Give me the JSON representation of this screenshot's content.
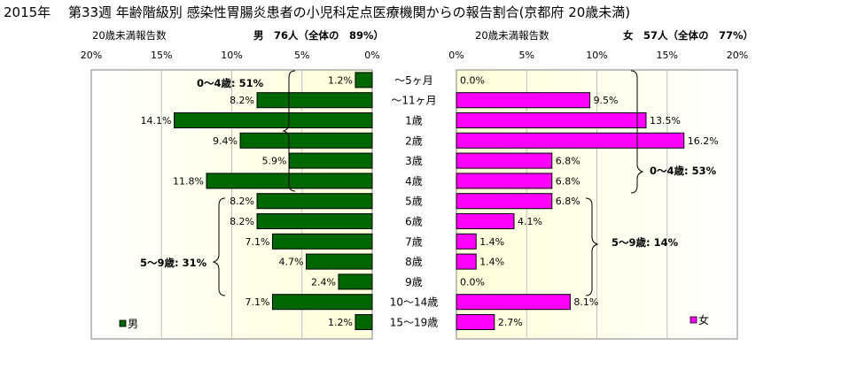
{
  "chart_data": {
    "type": "bar",
    "title": "2015年　 第33週 年齢階級別 感染性胃腸炎患者の小児科定点医療機関からの報告割合(京都府 20歳未満)",
    "categories": [
      "～5ヶ月",
      "～11ヶ月",
      "1歳",
      "2歳",
      "3歳",
      "4歳",
      "5歳",
      "6歳",
      "7歳",
      "8歳",
      "9歳",
      "10～14歳",
      "15～19歳"
    ],
    "axis_ticks": [
      "20%",
      "15%",
      "10%",
      "5%",
      "0%"
    ],
    "axis_ticks_right": [
      "0%",
      "5%",
      "10%",
      "15%",
      "20%"
    ],
    "xlim": [
      0,
      20
    ],
    "series": [
      {
        "name": "男",
        "color": "#006600",
        "values": [
          1.2,
          8.2,
          14.1,
          9.4,
          5.9,
          11.8,
          8.2,
          8.2,
          7.1,
          4.7,
          2.4,
          7.1,
          1.2
        ],
        "labels": [
          "1.2%",
          "8.2%",
          "14.1%",
          "9.4%",
          "5.9%",
          "11.8%",
          "8.2%",
          "8.2%",
          "7.1%",
          "4.7%",
          "2.4%",
          "7.1%",
          "1.2%"
        ],
        "header": {
          "sub": "20歳未満報告数",
          "main": "男　76人（全体の　89%）"
        },
        "brackets": [
          "0～4歳: 51%",
          "5～9歳: 31%"
        ]
      },
      {
        "name": "女",
        "color": "#ff00ff",
        "values": [
          0.0,
          9.5,
          13.5,
          16.2,
          6.8,
          6.8,
          6.8,
          4.1,
          1.4,
          1.4,
          0.0,
          8.1,
          2.7
        ],
        "labels": [
          "0.0%",
          "9.5%",
          "13.5%",
          "16.2%",
          "6.8%",
          "6.8%",
          "6.8%",
          "4.1%",
          "1.4%",
          "1.4%",
          "0.0%",
          "8.1%",
          "2.7%"
        ],
        "header": {
          "sub": "20歳未満報告数",
          "main": "女　57人（全体の　77%）"
        },
        "brackets": [
          "0～4歳: 53%",
          "5～9歳: 14%"
        ]
      }
    ],
    "grid": true,
    "legend": [
      "男",
      "女"
    ],
    "plot_background": "#ffffe0"
  }
}
